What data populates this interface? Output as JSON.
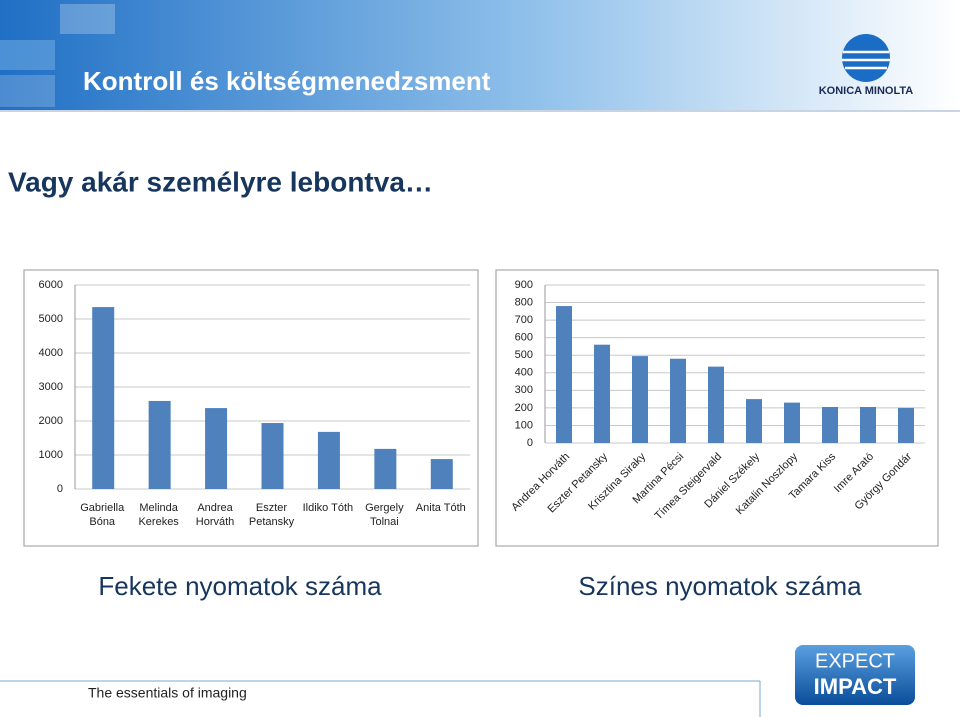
{
  "header": {
    "title": "Kontroll és költségmenedzsment",
    "logo": "KONICA MINOLTA"
  },
  "subtitle": "Vagy akár személyre lebontva…",
  "chart_data": [
    {
      "type": "bar",
      "title": "Fekete nyomatok száma",
      "categories": [
        "Gabriella Bóna",
        "Melinda Kerekes",
        "Andrea Horváth",
        "Eszter Petansky",
        "Ildiko Tóth",
        "Gergely Tolnai",
        "Anita Tóth"
      ],
      "values": [
        5350,
        2590,
        2380,
        1940,
        1680,
        1180,
        880
      ],
      "color": "#4f81bd",
      "ylim": [
        0,
        6000
      ],
      "yticks": [
        0,
        1000,
        2000,
        3000,
        4000,
        5000,
        6000
      ],
      "grid": true,
      "label_rotation": 0
    },
    {
      "type": "bar",
      "title": "Színes nyomatok száma",
      "categories": [
        "Andrea Horváth",
        "Eszter Petansky",
        "Krisztina Siraky",
        "Martina Pécsi",
        "Tímea Steigervald",
        "Dániel Székely",
        "Katalin Noszlopy",
        "Tamara Kiss",
        "Imre Arató",
        "György Gondár"
      ],
      "values": [
        780,
        560,
        495,
        480,
        435,
        250,
        230,
        205,
        205,
        200
      ],
      "color": "#4f81bd",
      "ylim": [
        0,
        900
      ],
      "yticks": [
        0,
        100,
        200,
        300,
        400,
        500,
        600,
        700,
        800,
        900
      ],
      "grid": true,
      "label_rotation": -45
    }
  ],
  "footer": {
    "tagline": "The essentials of imaging",
    "badge_top": "EXPECT",
    "badge_bottom": "IMPACT"
  }
}
